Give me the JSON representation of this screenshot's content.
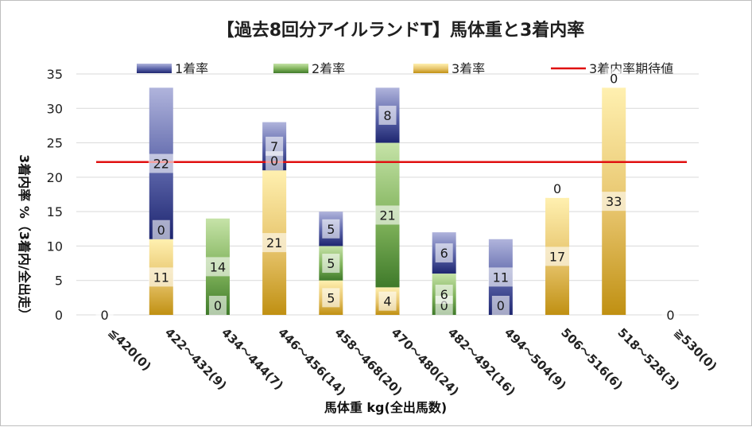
{
  "chart_data": {
    "type": "bar",
    "stacked": true,
    "title": "【過去8回分アイルランドT】馬体重と3着内率",
    "xlabel": "馬体重 kg(全出馬数)",
    "ylabel": "3着内率 %（3着内/全出走）",
    "ylim": [
      0,
      35
    ],
    "yticks": [
      0,
      5,
      10,
      15,
      20,
      25,
      30,
      35
    ],
    "grid": true,
    "legend_position": "top",
    "categories": [
      "≦420(0)",
      "422～432(9)",
      "434～444(7)",
      "446～456(14)",
      "458～468(20)",
      "470～480(24)",
      "482～492(16)",
      "494～504(9)",
      "506～516(6)",
      "518～528(3)",
      "≧530(0)"
    ],
    "series": [
      {
        "name": "3着率",
        "values": [
          0,
          11,
          0,
          21,
          5,
          4,
          0,
          0,
          17,
          33,
          0
        ],
        "labels": [
          "0",
          "11",
          "0",
          "21",
          "5",
          "4",
          "0",
          "0",
          "17",
          "33",
          "0"
        ],
        "color": "#c9a227"
      },
      {
        "name": "2着率",
        "values": [
          0,
          0,
          14,
          0,
          5,
          21,
          6,
          0,
          0,
          0,
          0
        ],
        "labels": [
          "",
          "0",
          "14",
          "0",
          "5",
          "21",
          "6",
          "",
          "0",
          "0",
          ""
        ],
        "color": "#5a8a3a"
      },
      {
        "name": "1着率",
        "values": [
          0,
          22,
          0,
          7,
          5,
          8,
          6,
          11,
          0,
          0,
          0
        ],
        "labels": [
          "",
          "22",
          "",
          "7",
          "5",
          "8",
          "6",
          "11",
          "",
          "",
          ""
        ],
        "color": "#2e3a8c"
      }
    ],
    "reference_line": {
      "name": "3着内率期待値",
      "value": 22.2,
      "color": "#e01010"
    }
  }
}
